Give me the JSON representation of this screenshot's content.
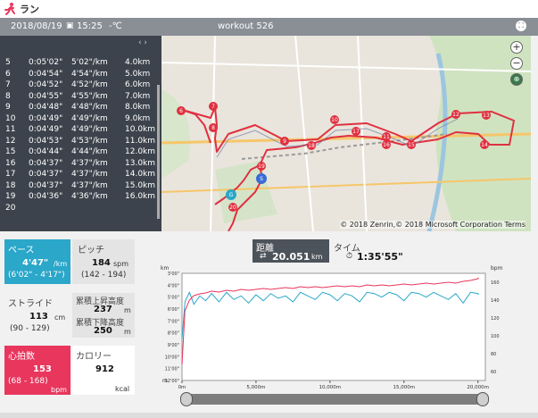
{
  "app": {
    "title": "ラン"
  },
  "header": {
    "date": "2018/08/19",
    "time": "15:25",
    "temp_label": "-℃",
    "workout": "workout 526"
  },
  "splits": [
    {
      "n": "5",
      "time": "0:05'02\"",
      "pace": "5'02\"/km",
      "dist": "4.0km"
    },
    {
      "n": "6",
      "time": "0:04'54\"",
      "pace": "4'54\"/km",
      "dist": "5.0km"
    },
    {
      "n": "7",
      "time": "0:04'52\"",
      "pace": "4'52\"/km",
      "dist": "6.0km"
    },
    {
      "n": "8",
      "time": "0:04'55\"",
      "pace": "4'55\"/km",
      "dist": "7.0km"
    },
    {
      "n": "9",
      "time": "0:04'48\"",
      "pace": "4'48\"/km",
      "dist": "8.0km"
    },
    {
      "n": "10",
      "time": "0:04'49\"",
      "pace": "4'49\"/km",
      "dist": "9.0km"
    },
    {
      "n": "11",
      "time": "0:04'49\"",
      "pace": "4'49\"/km",
      "dist": "10.0km"
    },
    {
      "n": "12",
      "time": "0:04'53\"",
      "pace": "4'53\"/km",
      "dist": "11.0km"
    },
    {
      "n": "15",
      "time": "0:04'44\"",
      "pace": "4'44\"/km",
      "dist": "12.0km"
    },
    {
      "n": "16",
      "time": "0:04'37\"",
      "pace": "4'37\"/km",
      "dist": "13.0km"
    },
    {
      "n": "17",
      "time": "0:04'37\"",
      "pace": "4'37\"/km",
      "dist": "14.0km"
    },
    {
      "n": "18",
      "time": "0:04'37\"",
      "pace": "4'37\"/km",
      "dist": "15.0km"
    },
    {
      "n": "19",
      "time": "0:04'36\"",
      "pace": "4'36\"/km",
      "dist": "16.0km"
    },
    {
      "n": "20",
      "time": "",
      "pace": "",
      "dist": ""
    }
  ],
  "map": {
    "copyright": "© 2018 Zenrin,© 2018 Microsoft Corporation Terms",
    "markers": [
      "6",
      "7",
      "8",
      "9",
      "10",
      "11",
      "12",
      "13",
      "14",
      "15",
      "16",
      "17",
      "18",
      "19",
      "20",
      "G",
      "S"
    ]
  },
  "stats": {
    "pace_label": "ペース",
    "pace_value": "4'47\"",
    "pace_unit": "/km",
    "pace_range": "(6'02\" - 4'17\")",
    "pitch_label": "ピッチ",
    "pitch_value": "184",
    "pitch_unit": "spm",
    "pitch_range": "(142 - 194)",
    "stride_label": "ストライド",
    "stride_value": "113",
    "stride_unit": "cm",
    "stride_range": "(90 - 129)",
    "ascent_label": "累積上昇高度",
    "ascent_value": "237",
    "ascent_unit": "m",
    "descent_label": "累積下降高度",
    "descent_value": "250",
    "descent_unit": "m",
    "hr_label": "心拍数",
    "hr_value": "153",
    "hr_range": "(68 - 168)",
    "hr_unit": "bpm",
    "cal_label": "カロリー",
    "cal_value": "912",
    "cal_unit": "kcal"
  },
  "tabs": {
    "distance_label": "距離",
    "distance_value": "20.051",
    "distance_unit": "km",
    "time_label": "タイム",
    "time_value": "1:35'55\""
  },
  "colors": {
    "pace": "#2aa7c9",
    "hr": "#e8365d",
    "route": "#e03040"
  },
  "chart_data": {
    "type": "line",
    "xlabel": "m",
    "ylabel_left": "km",
    "ylabel_right": "bpm",
    "x_ticks": [
      "0m",
      "5,000m",
      "10,000m",
      "15,000m",
      "20,000m"
    ],
    "x_values": [
      0,
      5000,
      10000,
      15000,
      20000
    ],
    "xlim": [
      0,
      20500
    ],
    "y_left_ticks": [
      "3'00\"",
      "4'00\"",
      "5'00\"",
      "6'00\"",
      "7'00\"",
      "8'00\"",
      "9'00\"",
      "10'00\"",
      "11'00\"",
      "12'00\""
    ],
    "y_right_ticks": [
      "160",
      "140",
      "120",
      "100",
      "80",
      "60"
    ],
    "series": [
      {
        "name": "ペース",
        "axis": "left",
        "units": "min/km",
        "x": [
          0,
          200,
          500,
          800,
          1200,
          1600,
          2000,
          2500,
          3000,
          3500,
          4000,
          4500,
          5000,
          5500,
          6000,
          6500,
          7000,
          7500,
          8000,
          8500,
          9000,
          9500,
          10000,
          10500,
          11000,
          11500,
          12000,
          12500,
          13000,
          13500,
          14000,
          14500,
          15000,
          15500,
          16000,
          16500,
          17000,
          17500,
          18000,
          18500,
          19000,
          19500,
          20000,
          20051
        ],
        "y": [
          8.5,
          5.4,
          4.6,
          5.6,
          4.9,
          5.3,
          4.7,
          5.4,
          4.6,
          5.2,
          4.9,
          5.5,
          4.8,
          5.3,
          4.7,
          5.1,
          4.9,
          5.4,
          4.6,
          4.9,
          5.2,
          4.6,
          4.8,
          5.3,
          4.7,
          4.9,
          5.4,
          4.6,
          4.7,
          5.0,
          4.6,
          4.8,
          5.3,
          4.6,
          4.7,
          5.0,
          4.6,
          4.9,
          5.2,
          4.7,
          5.5,
          4.6,
          4.7,
          4.8
        ]
      },
      {
        "name": "心拍数",
        "axis": "right",
        "units": "bpm",
        "x": [
          0,
          200,
          500,
          800,
          1200,
          1600,
          2000,
          2500,
          3000,
          3500,
          4000,
          4500,
          5000,
          5500,
          6000,
          6500,
          7000,
          7500,
          8000,
          8500,
          9000,
          9500,
          10000,
          10500,
          11000,
          11500,
          12000,
          12500,
          13000,
          13500,
          14000,
          14500,
          15000,
          15500,
          16000,
          16500,
          17000,
          17500,
          18000,
          18500,
          19000,
          19500,
          20000,
          20051
        ],
        "y": [
          68,
          128,
          140,
          145,
          147,
          148,
          150,
          149,
          151,
          150,
          152,
          151,
          152,
          153,
          152,
          153,
          154,
          153,
          155,
          154,
          155,
          154,
          155,
          156,
          155,
          156,
          155,
          157,
          156,
          157,
          156,
          157,
          158,
          157,
          158,
          159,
          158,
          159,
          160,
          159,
          161,
          162,
          164,
          165
        ]
      }
    ]
  }
}
